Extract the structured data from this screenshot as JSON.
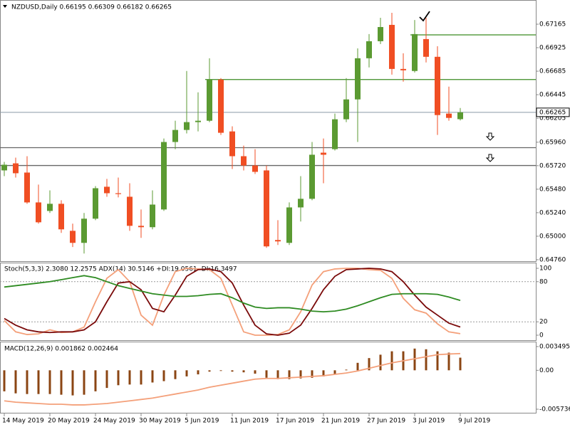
{
  "chart_data": [
    {
      "type": "candlestick",
      "title": "NZDUSD,Daily 0.66195 0.66309 0.66182 0.66265",
      "categories": [
        "14 May 2019",
        null,
        null,
        null,
        "20 May 2019",
        null,
        null,
        null,
        "24 May 2019",
        null,
        null,
        null,
        "30 May 2019",
        null,
        null,
        null,
        "5 Jun 2019",
        null,
        null,
        null,
        "11 Jun 2019",
        null,
        null,
        null,
        "17 Jun 2019",
        null,
        null,
        null,
        "21 Jun 2019",
        null,
        null,
        null,
        "27 Jun 2019",
        null,
        null,
        null,
        "3 Jul 2019",
        null,
        null,
        null,
        "9 Jul 2019"
      ],
      "open": [
        0.65672,
        0.65744,
        0.6565,
        0.65345,
        0.65258,
        0.65331,
        0.65055,
        0.64932,
        0.65179,
        0.65505,
        0.65439,
        0.65403,
        0.65106,
        0.65092,
        0.65273,
        0.65962,
        0.66085,
        0.66165,
        0.66179,
        0.666,
        0.6607,
        0.65817,
        0.65722,
        0.65672,
        0.64961,
        0.64932,
        0.65294,
        0.65382,
        0.65853,
        0.65889,
        0.66194,
        0.66397,
        0.66817,
        0.66991,
        0.67158,
        0.66708,
        0.66687,
        0.67013,
        0.66832,
        0.66252,
        0.66195
      ],
      "high": [
        0.65759,
        0.65802,
        0.65817,
        0.65527,
        0.65468,
        0.65367,
        0.65128,
        0.65237,
        0.65512,
        0.65585,
        0.65599,
        0.65541,
        0.65273,
        0.65468,
        0.65998,
        0.66179,
        0.66687,
        0.66469,
        0.66817,
        0.66614,
        0.66122,
        0.65925,
        0.65889,
        0.65722,
        0.65164,
        0.65345,
        0.65613,
        0.65962,
        0.65998,
        0.66252,
        0.66614,
        0.66918,
        0.67064,
        0.6723,
        0.67281,
        0.66868,
        0.67208,
        0.6723,
        0.6694,
        0.66527,
        0.66309
      ],
      "low": [
        0.65613,
        0.65599,
        0.65331,
        0.65128,
        0.65237,
        0.65034,
        0.64889,
        0.64823,
        0.65164,
        0.65403,
        0.65396,
        0.65055,
        0.64983,
        0.6507,
        0.65258,
        0.65889,
        0.66049,
        0.6607,
        0.66165,
        0.66034,
        0.65686,
        0.65672,
        0.65635,
        0.64881,
        0.6491,
        0.6491,
        0.6515,
        0.65367,
        0.65541,
        0.65875,
        0.66165,
        0.65962,
        0.66723,
        0.66962,
        0.6665,
        0.66578,
        0.66672,
        0.66774,
        0.66034,
        0.66179,
        0.66182
      ],
      "close": [
        0.6573,
        0.65643,
        0.65345,
        0.65142,
        0.65331,
        0.6507,
        0.64932,
        0.65179,
        0.6549,
        0.65439,
        0.65432,
        0.65106,
        0.65092,
        0.65323,
        0.65962,
        0.66085,
        0.66165,
        0.66179,
        0.666,
        0.66056,
        0.65817,
        0.65722,
        0.65657,
        0.64896,
        0.64947,
        0.65294,
        0.65382,
        0.65832,
        0.65832,
        0.66194,
        0.66397,
        0.66817,
        0.66991,
        0.67136,
        0.66708,
        0.66694,
        0.67064,
        0.66832,
        0.66237,
        0.66208,
        0.66265
      ],
      "up_color": "#5b9a32",
      "down_color": "#f04e23",
      "ylim": [
        0.64745,
        0.67412
      ],
      "yticks": [
        {
          "value": 0.6476,
          "label": "0.64760"
        },
        {
          "value": 0.65,
          "label": "0.65000"
        },
        {
          "value": 0.6524,
          "label": "0.65240"
        },
        {
          "value": 0.6548,
          "label": "0.65480"
        },
        {
          "value": 0.6572,
          "label": "0.65720"
        },
        {
          "value": 0.6596,
          "label": "0.65960"
        },
        0.66205,
        0.66445,
        0.66685,
        0.66925,
        0.67165
      ],
      "levels": [
        {
          "value": 0.67056,
          "color": "#3a8a22",
          "start_index": 36
        },
        {
          "value": 0.666,
          "color": "#3a8a22",
          "start_index": 18
        },
        {
          "value": 0.65904,
          "color": "#666666",
          "start_index": 0
        },
        {
          "value": 0.65722,
          "color": "#666666",
          "start_index": 0
        }
      ],
      "last_price_color": "#8a9aa8"
    },
    {
      "type": "line",
      "title": "Stoch(5,3,3) 2.3080 12.2575 ADX(14) 30.5146 +DI:19.0561 -DI:16.3497",
      "ylim": [
        -8.5,
        108.5
      ],
      "yticks": [
        0,
        20,
        80,
        100
      ],
      "levels": [
        20,
        80
      ],
      "series": [
        {
          "color": "#f4a07a",
          "values": [
            22,
            5,
            1,
            2,
            8,
            4,
            5,
            12,
            50,
            85,
            98,
            80,
            30,
            15,
            60,
            95,
            100,
            99,
            98,
            85,
            45,
            5,
            0,
            0,
            1,
            8,
            35,
            75,
            95,
            99,
            100,
            100,
            98,
            97,
            85,
            55,
            38,
            33,
            17,
            5,
            2.308
          ]
        },
        {
          "color": "#7a0a0a",
          "values": [
            25,
            15,
            8,
            5,
            4,
            5,
            5,
            8,
            20,
            50,
            78,
            80,
            68,
            40,
            35,
            60,
            88,
            98,
            99,
            95,
            78,
            45,
            15,
            2,
            0,
            3,
            15,
            40,
            68,
            88,
            98,
            99,
            100,
            99,
            95,
            80,
            60,
            42,
            30,
            18,
            12.2575
          ]
        },
        {
          "color": "#2e8b22",
          "values": [
            72,
            74,
            76,
            78,
            80,
            83,
            86,
            89,
            86,
            80,
            74,
            70,
            66,
            62,
            60,
            58,
            58,
            59,
            61,
            62,
            56,
            48,
            42,
            40,
            41,
            41,
            39,
            36,
            35,
            36,
            39,
            44,
            50,
            56,
            61,
            62,
            62,
            62,
            61,
            57,
            52
          ]
        }
      ]
    },
    {
      "type": "macd",
      "title": "MACD(12,26,9) 0.001862 0.002464",
      "ylim": [
        -0.005736,
        0.003495
      ],
      "yticks": [
        -0.005736,
        {
          "value": 0,
          "label": "0.00"
        },
        0.003495
      ],
      "series": [
        {
          "kind": "bar",
          "color": "#8b4513",
          "values": [
            -0.0031,
            -0.0034,
            -0.0035,
            -0.0035,
            -0.0035,
            -0.0036,
            -0.0037,
            -0.0036,
            -0.0031,
            -0.0026,
            -0.0022,
            -0.0021,
            -0.0021,
            -0.0018,
            -0.0016,
            -0.0013,
            -0.0009,
            -0.0006,
            -0.0002,
            -0.0001,
            -0.0002,
            -0.0003,
            -0.0005,
            -0.0011,
            -0.0013,
            -0.0013,
            -0.0012,
            -0.0011,
            -0.0009,
            -0.0006,
            0.0001,
            0.0011,
            0.0018,
            0.0023,
            0.0028,
            0.0028,
            0.0032,
            0.0031,
            0.0028,
            0.0026,
            0.001862
          ]
        },
        {
          "kind": "line",
          "color": "#f4a07a",
          "values": [
            -0.0045,
            -0.0047,
            -0.0048,
            -0.0049,
            -0.005,
            -0.005,
            -0.0051,
            -0.0051,
            -0.005,
            -0.0049,
            -0.0047,
            -0.0045,
            -0.0043,
            -0.0041,
            -0.0038,
            -0.0035,
            -0.0032,
            -0.0029,
            -0.0025,
            -0.0022,
            -0.0019,
            -0.0016,
            -0.0013,
            -0.0012,
            -0.0012,
            -0.0011,
            -0.001,
            -0.0009,
            -0.0008,
            -0.0006,
            -0.0004,
            -0.0001,
            0.0003,
            0.0007,
            0.0011,
            0.0014,
            0.0017,
            0.002,
            0.0023,
            0.0024,
            0.002464
          ]
        }
      ]
    }
  ]
}
